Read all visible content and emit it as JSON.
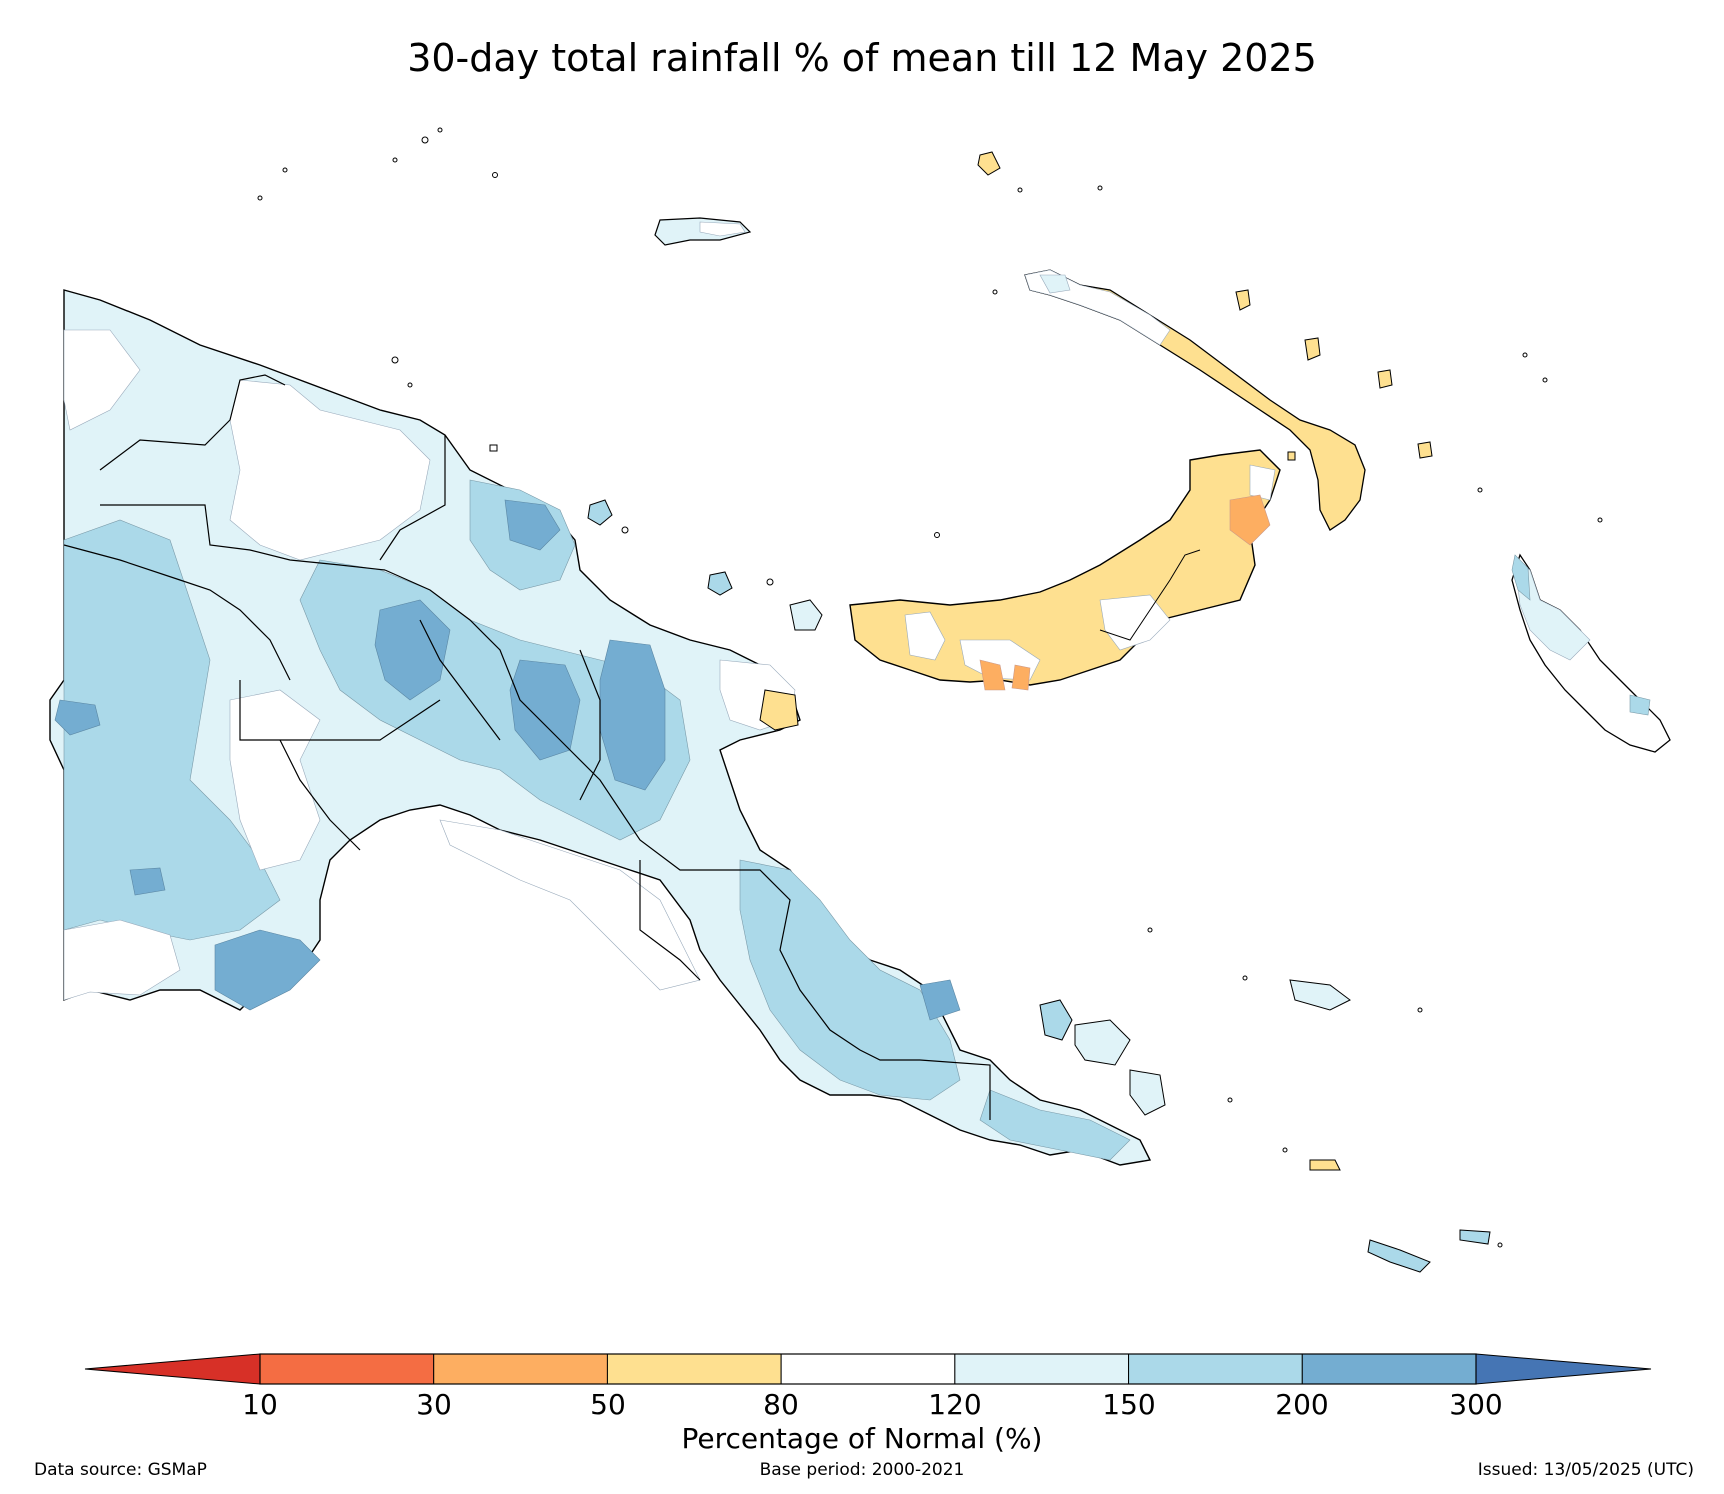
{
  "title": "30-day total rainfall % of mean till 12 May 2025",
  "legend": {
    "title": "Percentage of Normal (%)",
    "ticks": [
      "10",
      "30",
      "50",
      "80",
      "120",
      "150",
      "200",
      "300"
    ],
    "bins": [
      {
        "range": "<10",
        "color": "#d73027"
      },
      {
        "range": "10-30",
        "color": "#f46d43"
      },
      {
        "range": "30-50",
        "color": "#fdae61"
      },
      {
        "range": "50-80",
        "color": "#fee090"
      },
      {
        "range": "80-120",
        "color": "#ffffff"
      },
      {
        "range": "120-150",
        "color": "#e0f3f8"
      },
      {
        "range": "150-200",
        "color": "#abd9e9"
      },
      {
        "range": "200-300",
        "color": "#74add1"
      },
      {
        "range": ">300",
        "color": "#4575b4"
      }
    ]
  },
  "footer": {
    "source": "Data source: GSMaP",
    "base_period": "Base period: 2000-2021",
    "issued": "Issued: 13/05/2025 (UTC)"
  }
}
